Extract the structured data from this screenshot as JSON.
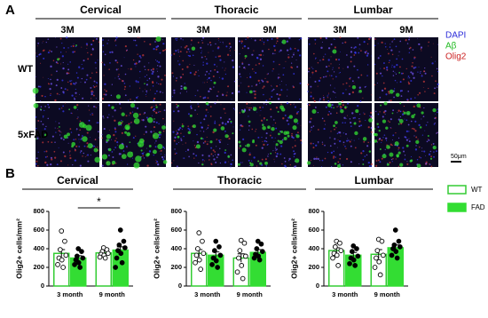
{
  "panel_a": {
    "label": "A",
    "regions": [
      "Cervical",
      "Thoracic",
      "Lumbar"
    ],
    "timepoints": [
      "3M",
      "9M"
    ],
    "genotypes": [
      "WT",
      "5xFAD"
    ],
    "channels": [
      {
        "name": "DAPI",
        "color": "#2b2bd9"
      },
      {
        "name": "Aβ",
        "color": "#22bb22"
      },
      {
        "name": "Olig2",
        "color": "#cc2222"
      }
    ],
    "scale_bar": "50μm"
  },
  "panel_b_label": "B",
  "chart_data": [
    {
      "type": "bar",
      "title": "Cervical",
      "ylabel": "Olig2+ cells/mm²",
      "categories": [
        "3 month",
        "9 month"
      ],
      "ylim": [
        0,
        800
      ],
      "yticks": [
        0,
        200,
        400,
        600,
        800
      ],
      "significance": "*",
      "series": [
        {
          "name": "WT",
          "color": "#33cc33",
          "values": [
            350,
            355
          ],
          "errors": [
            40,
            20
          ],
          "points": [
            [
              590,
              480,
              390,
              330,
              300,
              280,
              230,
              200
            ],
            [
              410,
              390,
              370,
              350,
              340,
              330,
              310,
              300
            ]
          ]
        },
        {
          "name": "FAD",
          "color": "#33dd33",
          "values": [
            300,
            385
          ],
          "errors": [
            25,
            35
          ],
          "points": [
            [
              400,
              370,
              320,
              300,
              280,
              250,
              230,
              200
            ],
            [
              600,
              480,
              440,
              410,
              380,
              350,
              300,
              250,
              200
            ]
          ]
        }
      ]
    },
    {
      "type": "bar",
      "title": "Thoracic",
      "ylabel": "Olig2+ cells/mm²",
      "categories": [
        "3 month",
        "9 month"
      ],
      "ylim": [
        0,
        800
      ],
      "yticks": [
        0,
        200,
        400,
        600,
        800
      ],
      "series": [
        {
          "name": "WT",
          "color": "#33cc33",
          "values": [
            350,
            300
          ],
          "errors": [
            40,
            45
          ],
          "points": [
            [
              570,
              480,
              400,
              350,
              330,
              280,
              250,
              180
            ],
            [
              490,
              460,
              380,
              320,
              300,
              220,
              150,
              80
            ]
          ]
        },
        {
          "name": "FAD",
          "color": "#33dd33",
          "values": [
            330,
            360
          ],
          "errors": [
            35,
            30
          ],
          "points": [
            [
              480,
              420,
              380,
              330,
              300,
              270,
              230,
              200
            ],
            [
              480,
              450,
              400,
              370,
              340,
              320,
              300,
              280
            ]
          ]
        }
      ]
    },
    {
      "type": "bar",
      "title": "Lumbar",
      "ylabel": "Olig2+ cells/mm²",
      "categories": [
        "3 month",
        "9 month"
      ],
      "ylim": [
        0,
        800
      ],
      "yticks": [
        0,
        200,
        400,
        600,
        800
      ],
      "series": [
        {
          "name": "WT",
          "color": "#33cc33",
          "values": [
            380,
            340
          ],
          "errors": [
            30,
            50
          ],
          "points": [
            [
              480,
              460,
              420,
              380,
              350,
              330,
              300,
              220
            ],
            [
              500,
              480,
              380,
              330,
              300,
              260,
              200,
              120
            ]
          ]
        },
        {
          "name": "FAD",
          "color": "#33dd33",
          "values": [
            330,
            410
          ],
          "errors": [
            30,
            30
          ],
          "points": [
            [
              430,
              400,
              370,
              320,
              300,
              280,
              240,
              220
            ],
            [
              600,
              480,
              440,
              420,
              400,
              370,
              330,
              300
            ]
          ]
        }
      ]
    }
  ]
}
